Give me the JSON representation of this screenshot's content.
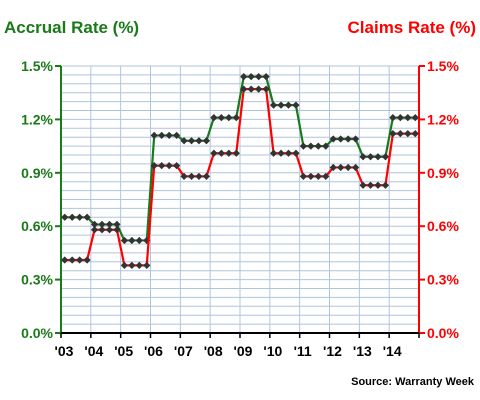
{
  "chart_data": {
    "type": "line",
    "left_title": "Accrual Rate (%)",
    "right_title": "Claims Rate (%)",
    "source": "Source: Warranty Week",
    "ylim": [
      0,
      1.5
    ],
    "y_ticks": [
      "0.0%",
      "0.3%",
      "0.6%",
      "0.9%",
      "1.2%",
      "1.5%"
    ],
    "y_tick_values": [
      0,
      0.3,
      0.6,
      0.9,
      1.2,
      1.5
    ],
    "x_ticks": [
      "'03",
      "'04",
      "'05",
      "'06",
      "'07",
      "'08",
      "'09",
      "'10",
      "'11",
      "'12",
      "'13",
      "'14"
    ],
    "x_range": [
      2003,
      2015
    ],
    "grid": true,
    "colors": {
      "accrual": "#1a7a1a",
      "claims": "#ff0000",
      "grid": "#b0c4de",
      "marker": "#333333"
    },
    "series": [
      {
        "name": "Accrual Rate (%)",
        "axis": "left",
        "color": "#1a7a1a",
        "x": [
          2003.0,
          2003.25,
          2003.5,
          2003.75,
          2004.0,
          2004.25,
          2004.5,
          2004.75,
          2005.0,
          2005.25,
          2005.5,
          2005.75,
          2006.0,
          2006.25,
          2006.5,
          2006.75,
          2007.0,
          2007.25,
          2007.5,
          2007.75,
          2008.0,
          2008.25,
          2008.5,
          2008.75,
          2009.0,
          2009.25,
          2009.5,
          2009.75,
          2010.0,
          2010.25,
          2010.5,
          2010.75,
          2011.0,
          2011.25,
          2011.5,
          2011.75,
          2012.0,
          2012.25,
          2012.5,
          2012.75,
          2013.0,
          2013.25,
          2013.5,
          2013.75,
          2014.0,
          2014.25,
          2014.5,
          2014.75
        ],
        "values": [
          0.65,
          0.65,
          0.65,
          0.65,
          0.61,
          0.61,
          0.61,
          0.61,
          0.52,
          0.52,
          0.52,
          0.52,
          1.11,
          1.11,
          1.11,
          1.11,
          1.08,
          1.08,
          1.08,
          1.08,
          1.21,
          1.21,
          1.21,
          1.21,
          1.44,
          1.44,
          1.44,
          1.44,
          1.28,
          1.28,
          1.28,
          1.28,
          1.05,
          1.05,
          1.05,
          1.05,
          1.09,
          1.09,
          1.09,
          1.09,
          0.99,
          0.99,
          0.99,
          0.99,
          1.21,
          1.21,
          1.21,
          1.21
        ]
      },
      {
        "name": "Claims Rate (%)",
        "axis": "right",
        "color": "#ff0000",
        "x": [
          2003.0,
          2003.25,
          2003.5,
          2003.75,
          2004.0,
          2004.25,
          2004.5,
          2004.75,
          2005.0,
          2005.25,
          2005.5,
          2005.75,
          2006.0,
          2006.25,
          2006.5,
          2006.75,
          2007.0,
          2007.25,
          2007.5,
          2007.75,
          2008.0,
          2008.25,
          2008.5,
          2008.75,
          2009.0,
          2009.25,
          2009.5,
          2009.75,
          2010.0,
          2010.25,
          2010.5,
          2010.75,
          2011.0,
          2011.25,
          2011.5,
          2011.75,
          2012.0,
          2012.25,
          2012.5,
          2012.75,
          2013.0,
          2013.25,
          2013.5,
          2013.75,
          2014.0,
          2014.25,
          2014.5,
          2014.75
        ],
        "values": [
          0.41,
          0.41,
          0.41,
          0.41,
          0.58,
          0.58,
          0.58,
          0.58,
          0.38,
          0.38,
          0.38,
          0.38,
          0.94,
          0.94,
          0.94,
          0.94,
          0.88,
          0.88,
          0.88,
          0.88,
          1.01,
          1.01,
          1.01,
          1.01,
          1.37,
          1.37,
          1.37,
          1.37,
          1.01,
          1.01,
          1.01,
          1.01,
          0.88,
          0.88,
          0.88,
          0.88,
          0.93,
          0.93,
          0.93,
          0.93,
          0.83,
          0.83,
          0.83,
          0.83,
          1.12,
          1.12,
          1.12,
          1.12
        ]
      }
    ]
  }
}
